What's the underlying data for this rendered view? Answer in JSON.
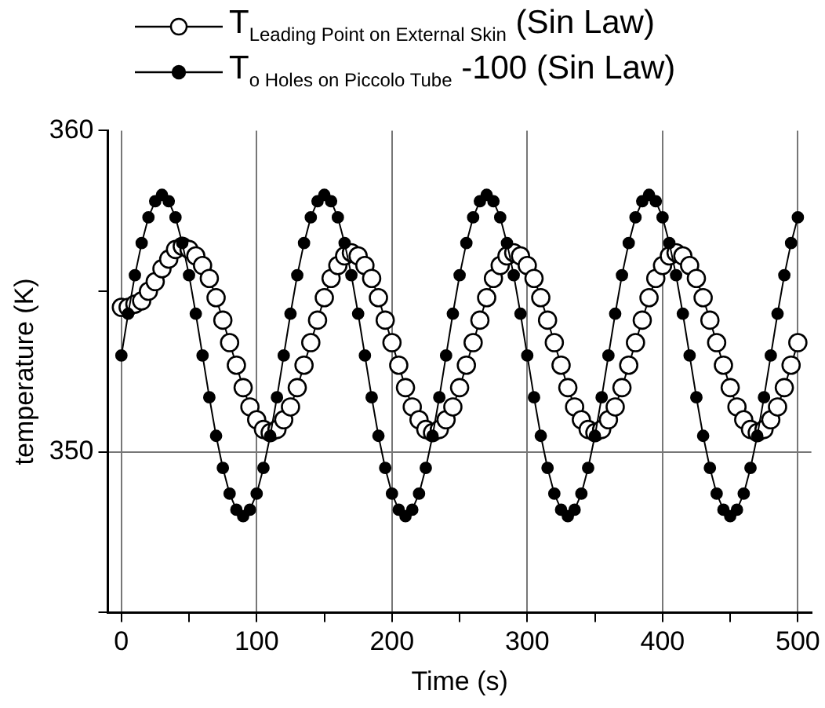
{
  "chart_data": {
    "type": "line",
    "xlabel": "Time (s)",
    "ylabel": "temperature (K)",
    "x": [
      0,
      5,
      10,
      15,
      20,
      25,
      30,
      35,
      40,
      45,
      50,
      55,
      60,
      65,
      70,
      75,
      80,
      85,
      90,
      95,
      100,
      105,
      110,
      115,
      120,
      125,
      130,
      135,
      140,
      145,
      150,
      155,
      160,
      165,
      170,
      175,
      180,
      185,
      190,
      195,
      200,
      205,
      210,
      215,
      220,
      225,
      230,
      235,
      240,
      245,
      250,
      255,
      260,
      265,
      270,
      275,
      280,
      285,
      290,
      295,
      300,
      305,
      310,
      315,
      320,
      325,
      330,
      335,
      340,
      345,
      350,
      355,
      360,
      365,
      370,
      375,
      380,
      385,
      390,
      395,
      400,
      405,
      410,
      415,
      420,
      425,
      430,
      435,
      440,
      445,
      450,
      455,
      460,
      465,
      470,
      475,
      480,
      485,
      490,
      495,
      500
    ],
    "series": [
      {
        "name": "T$_{Leading Point on External Skin}$ (Sin Law)",
        "color": "#000000",
        "values": [
          354.5,
          354.5,
          354.6,
          354.7,
          355.0,
          355.3,
          355.7,
          356.0,
          356.3,
          356.4,
          356.3,
          356.1,
          355.8,
          355.4,
          354.8,
          354.1,
          353.4,
          352.7,
          352.0,
          351.4,
          351.0,
          350.7,
          350.6,
          350.7,
          351.0,
          351.4,
          352.0,
          352.7,
          353.4,
          354.1,
          354.8,
          355.4,
          355.8,
          356.1,
          356.2,
          356.1,
          355.8,
          355.4,
          354.8,
          354.1,
          353.4,
          352.7,
          352.0,
          351.4,
          351.0,
          350.7,
          350.6,
          350.7,
          351.0,
          351.4,
          352.0,
          352.7,
          353.4,
          354.1,
          354.8,
          355.4,
          355.8,
          356.1,
          356.2,
          356.1,
          355.8,
          355.4,
          354.8,
          354.1,
          353.4,
          352.7,
          352.0,
          351.4,
          351.0,
          350.7,
          350.6,
          350.7,
          351.0,
          351.4,
          352.0,
          352.7,
          353.4,
          354.1,
          354.8,
          355.4,
          355.8,
          356.1,
          356.2,
          356.1,
          355.8,
          355.4,
          354.8,
          354.1,
          353.4,
          352.7,
          352.0,
          351.4,
          351.0,
          350.7,
          350.6,
          350.7,
          351.0,
          351.4,
          352.0,
          352.7,
          353.4
        ]
      },
      {
        "name": "T$_{o Holes on Piccolo Tube}$ -100 (Sin Law)",
        "color": "#000000",
        "values": [
          353,
          354.3,
          355.5,
          356.5,
          357.3,
          357.8,
          358,
          357.8,
          357.3,
          356.5,
          355.5,
          354.3,
          353,
          351.7,
          350.5,
          349.5,
          348.7,
          348.2,
          348,
          348.2,
          348.7,
          349.5,
          350.5,
          351.7,
          353,
          354.3,
          355.5,
          356.5,
          357.3,
          357.8,
          358,
          357.8,
          357.3,
          356.5,
          355.5,
          354.3,
          353,
          351.7,
          350.5,
          349.5,
          348.7,
          348.2,
          348,
          348.2,
          348.7,
          349.5,
          350.5,
          351.7,
          353,
          354.3,
          355.5,
          356.5,
          357.3,
          357.8,
          358,
          357.8,
          357.3,
          356.5,
          355.5,
          354.3,
          353,
          351.7,
          350.5,
          349.5,
          348.7,
          348.2,
          348,
          348.2,
          348.7,
          349.5,
          350.5,
          351.7,
          353,
          354.3,
          355.5,
          356.5,
          357.3,
          357.8,
          358,
          357.8,
          357.3,
          356.5,
          355.5,
          354.3,
          353,
          351.7,
          350.5,
          349.5,
          348.7,
          348.2,
          348,
          348.2,
          348.7,
          349.5,
          350.5,
          351.7,
          353,
          354.3,
          355.5,
          356.5,
          357.3
        ]
      }
    ],
    "xlim": [
      -10,
      510
    ],
    "xticks": [
      0,
      {
        "value": 50,
        "label": null
      },
      100,
      {
        "value": 150,
        "label": null
      },
      200,
      {
        "value": 250,
        "label": null
      },
      300,
      {
        "value": 350,
        "label": null
      },
      400,
      {
        "value": 450,
        "label": null
      },
      500
    ],
    "ylim": [
      345,
      360
    ],
    "yticks": [
      {
        "value": 345,
        "label": null
      },
      350,
      {
        "value": 355,
        "label": null
      },
      360
    ],
    "grid": true,
    "legend": "top",
    "marker": "circle",
    "line_style": "solid"
  }
}
